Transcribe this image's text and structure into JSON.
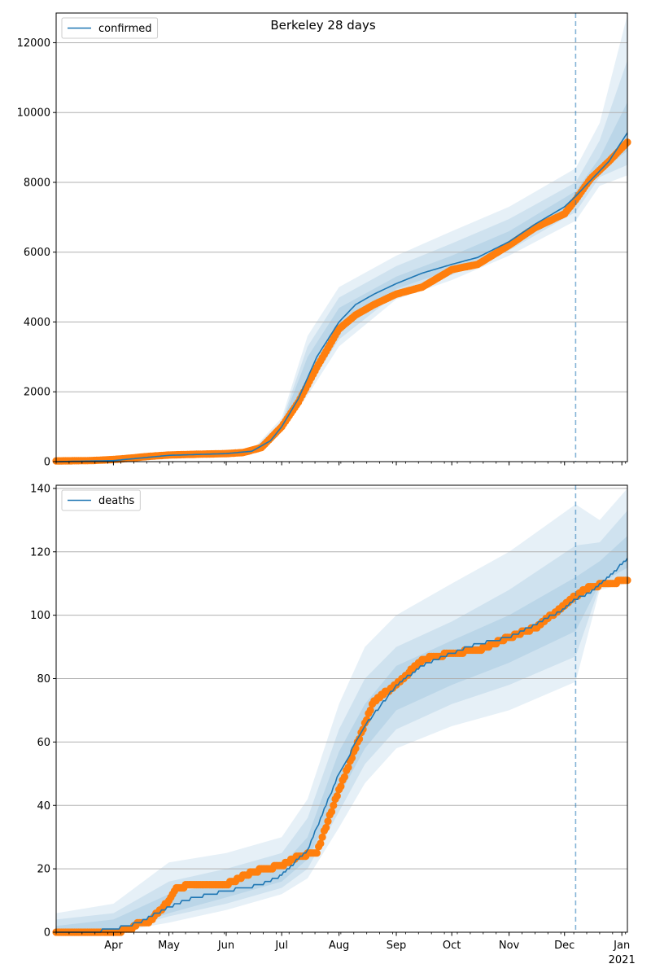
{
  "figure": {
    "title": "Berkeley 28 days"
  },
  "colors": {
    "model": "#1f77b4",
    "observed": "#ff7f0e",
    "band": "#1f77b4",
    "grid": "#b0b0b0",
    "vline": "#1f77b4"
  },
  "chart_data": [
    {
      "type": "line",
      "name": "confirmed-panel",
      "legend": {
        "entries": [
          "confirmed"
        ],
        "placement": "top-left"
      },
      "title": "Berkeley 28 days",
      "xlabel": "",
      "ylabel": "",
      "grid": {
        "y": true,
        "x": false
      },
      "xlim": [
        "2020-03-01",
        "2021-01-04"
      ],
      "ylim": [
        0,
        12850
      ],
      "yticks": [
        0,
        2000,
        4000,
        6000,
        8000,
        10000,
        12000
      ],
      "forecast_start": "2020-12-07",
      "model_series": {
        "name": "confirmed",
        "x": [
          "2020-03-01",
          "2020-04-01",
          "2020-05-01",
          "2020-06-01",
          "2020-06-15",
          "2020-06-25",
          "2020-07-01",
          "2020-07-10",
          "2020-07-20",
          "2020-08-01",
          "2020-08-10",
          "2020-08-20",
          "2020-09-01",
          "2020-09-15",
          "2020-10-01",
          "2020-10-15",
          "2020-11-01",
          "2020-11-15",
          "2020-12-01",
          "2020-12-07",
          "2020-12-15",
          "2020-12-25",
          "2021-01-04"
        ],
        "values": [
          0,
          30,
          180,
          230,
          300,
          600,
          1000,
          1800,
          3000,
          4000,
          4500,
          4800,
          5100,
          5400,
          5650,
          5850,
          6300,
          6800,
          7300,
          7600,
          8050,
          8600,
          9420
        ]
      },
      "bands": [
        {
          "x": [
            "2020-03-01",
            "2020-06-15",
            "2020-07-01",
            "2020-07-15",
            "2020-08-01",
            "2020-09-01",
            "2020-10-01",
            "2020-11-01",
            "2020-12-07",
            "2020-12-20",
            "2021-01-04"
          ],
          "lower": [
            0,
            280,
            850,
            1900,
            3300,
            4650,
            5200,
            5900,
            6900,
            7900,
            8200
          ],
          "upper": [
            0,
            330,
            1250,
            3600,
            5000,
            5900,
            6600,
            7300,
            8400,
            9700,
            12800
          ]
        },
        {
          "x": [
            "2020-03-01",
            "2020-06-15",
            "2020-07-01",
            "2020-07-15",
            "2020-08-01",
            "2020-09-01",
            "2020-10-01",
            "2020-11-01",
            "2020-12-07",
            "2020-12-20",
            "2021-01-04"
          ],
          "lower": [
            0,
            290,
            900,
            2100,
            3500,
            4800,
            5350,
            6050,
            7150,
            8150,
            8500
          ],
          "upper": [
            0,
            320,
            1150,
            3300,
            4700,
            5600,
            6250,
            6950,
            8000,
            9200,
            11500
          ]
        },
        {
          "x": [
            "2020-03-01",
            "2020-06-15",
            "2020-07-01",
            "2020-07-15",
            "2020-08-01",
            "2020-09-01",
            "2020-10-01",
            "2020-11-01",
            "2020-12-07",
            "2020-12-20",
            "2021-01-04"
          ],
          "lower": [
            0,
            295,
            950,
            2300,
            3700,
            4950,
            5500,
            6150,
            7350,
            8300,
            8900
          ],
          "upper": [
            0,
            310,
            1080,
            3000,
            4400,
            5300,
            5900,
            6600,
            7750,
            8700,
            10300
          ]
        }
      ],
      "observed_series": {
        "name": "observed confirmed",
        "x": [
          "2020-03-01",
          "2020-03-10",
          "2020-03-20",
          "2020-04-01",
          "2020-04-10",
          "2020-04-20",
          "2020-05-01",
          "2020-05-15",
          "2020-06-01",
          "2020-06-10",
          "2020-06-20",
          "2020-07-01",
          "2020-07-10",
          "2020-07-20",
          "2020-08-01",
          "2020-08-10",
          "2020-08-20",
          "2020-09-01",
          "2020-09-15",
          "2020-10-01",
          "2020-10-15",
          "2020-11-01",
          "2020-11-15",
          "2020-12-01",
          "2020-12-07",
          "2020-12-15",
          "2020-12-25",
          "2021-01-04"
        ],
        "values": [
          20,
          25,
          30,
          60,
          100,
          150,
          190,
          210,
          230,
          260,
          400,
          1000,
          1700,
          2700,
          3800,
          4200,
          4500,
          4800,
          5000,
          5500,
          5650,
          6200,
          6700,
          7100,
          7500,
          8100,
          8600,
          9150
        ]
      }
    },
    {
      "type": "line",
      "name": "deaths-panel",
      "legend": {
        "entries": [
          "deaths"
        ],
        "placement": "top-left"
      },
      "xlabel": "",
      "ylabel": "",
      "grid": {
        "y": true,
        "x": false
      },
      "xlim": [
        "2020-03-01",
        "2021-01-04"
      ],
      "ylim": [
        0,
        141
      ],
      "yticks": [
        0,
        20,
        40,
        60,
        80,
        100,
        120,
        140
      ],
      "xticks": [
        {
          "date": "2020-04-01",
          "label": "Apr"
        },
        {
          "date": "2020-05-01",
          "label": "May"
        },
        {
          "date": "2020-06-01",
          "label": "Jun"
        },
        {
          "date": "2020-07-01",
          "label": "Jul"
        },
        {
          "date": "2020-08-01",
          "label": "Aug"
        },
        {
          "date": "2020-09-01",
          "label": "Sep"
        },
        {
          "date": "2020-10-01",
          "label": "Oct"
        },
        {
          "date": "2020-11-01",
          "label": "Nov"
        },
        {
          "date": "2020-12-01",
          "label": "Dec"
        },
        {
          "date": "2021-01-01",
          "label": "Jan"
        }
      ],
      "year_label": "2021",
      "forecast_start": "2020-12-07",
      "model_series": {
        "name": "deaths",
        "x": [
          "2020-03-01",
          "2020-03-20",
          "2020-04-01",
          "2020-04-15",
          "2020-05-01",
          "2020-05-15",
          "2020-06-01",
          "2020-06-20",
          "2020-07-01",
          "2020-07-15",
          "2020-08-01",
          "2020-08-15",
          "2020-09-01",
          "2020-09-15",
          "2020-10-01",
          "2020-10-15",
          "2020-11-01",
          "2020-11-15",
          "2020-12-01",
          "2020-12-07",
          "2020-12-15",
          "2020-12-25",
          "2021-01-04"
        ],
        "values": [
          0,
          0,
          1,
          3,
          8,
          11,
          13,
          15,
          18,
          26,
          50,
          65,
          78,
          84,
          88,
          91,
          93,
          97,
          102,
          105,
          107,
          112,
          118
        ]
      },
      "bands": [
        {
          "x": [
            "2020-03-01",
            "2020-04-01",
            "2020-05-01",
            "2020-06-01",
            "2020-07-01",
            "2020-07-15",
            "2020-08-01",
            "2020-08-15",
            "2020-09-01",
            "2020-10-01",
            "2020-11-01",
            "2020-12-07",
            "2020-12-20",
            "2021-01-04"
          ],
          "lower": [
            0,
            0,
            3,
            7,
            12,
            17,
            33,
            47,
            58,
            65,
            70,
            79,
            108,
            110
          ],
          "upper": [
            6,
            9,
            22,
            25,
            30,
            42,
            72,
            90,
            100,
            110,
            120,
            135,
            130,
            140
          ]
        },
        {
          "x": [
            "2020-03-01",
            "2020-04-01",
            "2020-05-01",
            "2020-06-01",
            "2020-07-01",
            "2020-07-15",
            "2020-08-01",
            "2020-08-15",
            "2020-09-01",
            "2020-10-01",
            "2020-11-01",
            "2020-12-07",
            "2020-12-20",
            "2021-01-04"
          ],
          "lower": [
            0,
            0,
            5,
            9,
            14,
            20,
            38,
            53,
            64,
            72,
            78,
            87,
            109,
            112
          ],
          "upper": [
            4,
            6,
            16,
            20,
            25,
            36,
            64,
            80,
            90,
            98,
            108,
            122,
            123,
            133
          ]
        },
        {
          "x": [
            "2020-03-01",
            "2020-04-01",
            "2020-05-01",
            "2020-06-01",
            "2020-07-01",
            "2020-07-15",
            "2020-08-01",
            "2020-08-15",
            "2020-09-01",
            "2020-10-01",
            "2020-11-01",
            "2020-12-07",
            "2020-12-20",
            "2021-01-04"
          ],
          "lower": [
            0,
            0,
            6,
            11,
            16,
            23,
            43,
            58,
            70,
            78,
            85,
            95,
            110,
            115
          ],
          "upper": [
            2,
            4,
            12,
            16,
            21,
            30,
            57,
            72,
            84,
            92,
            100,
            112,
            117,
            125
          ]
        }
      ],
      "observed_series": {
        "name": "observed deaths",
        "x": [
          "2020-03-01",
          "2020-03-15",
          "2020-04-01",
          "2020-04-10",
          "2020-04-15",
          "2020-04-20",
          "2020-05-01",
          "2020-05-05",
          "2020-05-15",
          "2020-06-01",
          "2020-06-15",
          "2020-07-01",
          "2020-07-10",
          "2020-07-20",
          "2020-08-01",
          "2020-08-10",
          "2020-08-20",
          "2020-09-01",
          "2020-09-15",
          "2020-10-01",
          "2020-10-15",
          "2020-11-01",
          "2020-11-15",
          "2020-12-01",
          "2020-12-07",
          "2020-12-15",
          "2020-12-25",
          "2021-01-04"
        ],
        "values": [
          0,
          0,
          0,
          1,
          3,
          3,
          10,
          14,
          15,
          15,
          19,
          21,
          24,
          25,
          45,
          58,
          73,
          78,
          86,
          88,
          89,
          93,
          96,
          103,
          106,
          109,
          110,
          111
        ]
      }
    }
  ]
}
